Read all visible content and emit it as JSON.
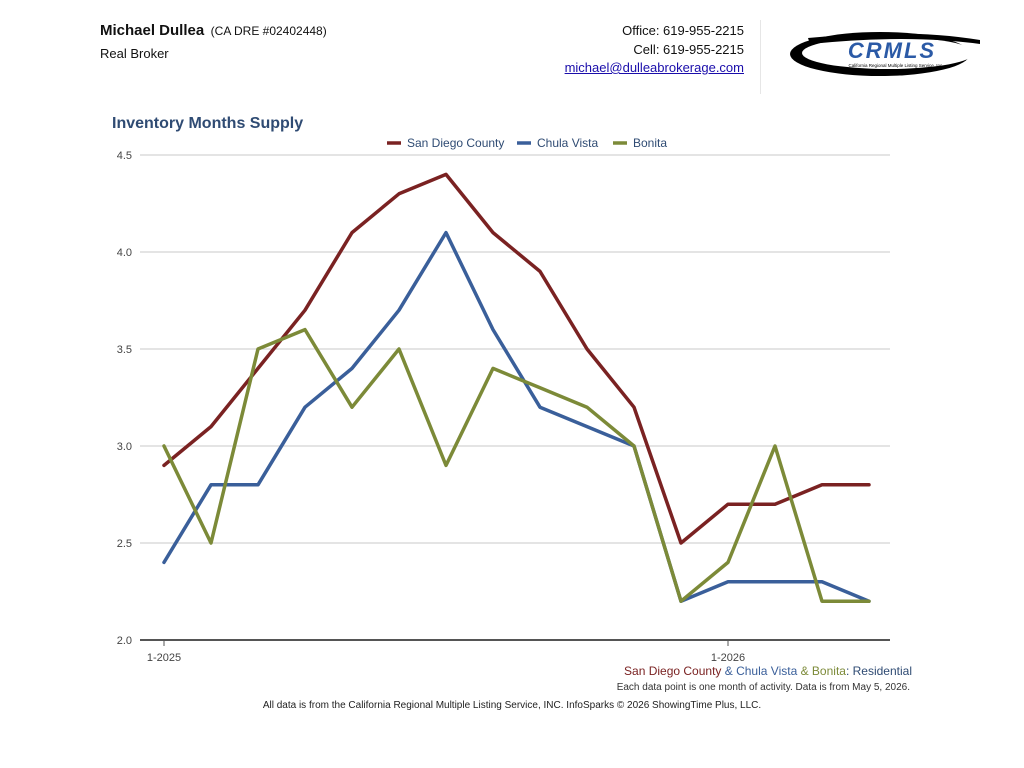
{
  "header": {
    "agent_name": "Michael Dullea",
    "agent_license": "(CA DRE #02402448)",
    "agent_title": "Real Broker",
    "office": "Office: 619-955-2215",
    "cell": "Cell: 619-955-2215",
    "email": "michael@dulleabrokerage.com",
    "logo_text": "CRMLS",
    "logo_tagline": "California Regional Multiple Listing Service, Inc."
  },
  "chart_data": {
    "type": "line",
    "title": "Inventory Months Supply",
    "x": [
      "1-2025",
      "2-2025",
      "3-2025",
      "4-2025",
      "5-2025",
      "6-2025",
      "7-2025",
      "8-2025",
      "9-2025",
      "10-2025",
      "11-2025",
      "12-2025",
      "1-2026",
      "2-2026",
      "3-2026",
      "4-2026"
    ],
    "x_tick_labels": [
      {
        "index": 0,
        "label": "1-2025"
      },
      {
        "index": 12,
        "label": "1-2026"
      }
    ],
    "ylim": [
      2.0,
      4.5
    ],
    "yticks": [
      "2.0",
      "2.5",
      "3.0",
      "3.5",
      "4.0",
      "4.5"
    ],
    "grid": true,
    "legend_position": "top-center",
    "series": [
      {
        "name": "San Diego County",
        "color": "#7a2222",
        "values": [
          2.9,
          3.1,
          3.4,
          3.7,
          4.1,
          4.3,
          4.4,
          4.1,
          3.9,
          3.5,
          3.2,
          2.5,
          2.7,
          2.7,
          2.8,
          2.8
        ]
      },
      {
        "name": "Chula Vista",
        "color": "#3a5f9a",
        "values": [
          2.4,
          2.8,
          2.8,
          3.2,
          3.4,
          3.7,
          4.1,
          3.6,
          3.2,
          3.1,
          3.0,
          2.2,
          2.3,
          2.3,
          2.3,
          2.2
        ]
      },
      {
        "name": "Bonita",
        "color": "#7c8a38",
        "values": [
          3.0,
          2.5,
          3.5,
          3.6,
          3.2,
          3.5,
          2.9,
          3.4,
          3.3,
          3.2,
          3.0,
          2.2,
          2.4,
          3.0,
          2.2,
          2.2
        ]
      }
    ]
  },
  "footer": {
    "subtitle_parts": [
      {
        "text": "San Diego County",
        "color": "#7a2222"
      },
      {
        "text": " & ",
        "color": "#3a5f9a"
      },
      {
        "text": "Chula Vista",
        "color": "#3a5f9a"
      },
      {
        "text": " & ",
        "color": "#7c8a38"
      },
      {
        "text": "Bonita",
        "color": "#7c8a38"
      },
      {
        "text": ": Residential",
        "color": "#2f4b73"
      }
    ],
    "note": "Each data point is one month of activity. Data is from May 5, 2026.",
    "credits": "All data is from the California Regional Multiple Listing Service, INC. InfoSparks © 2026 ShowingTime Plus, LLC."
  }
}
